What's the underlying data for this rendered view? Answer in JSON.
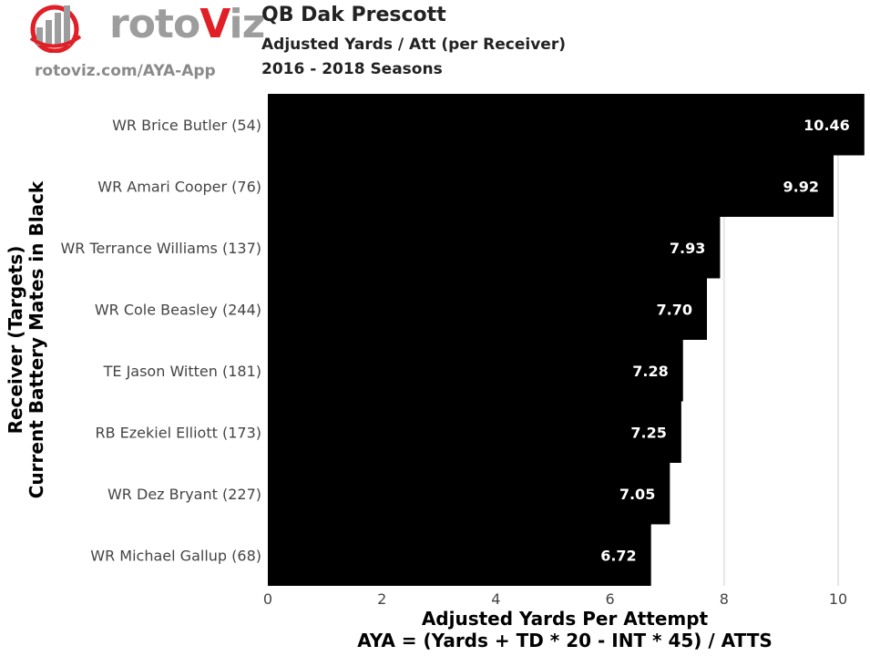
{
  "header": {
    "logo_text_a": "roto",
    "logo_text_v": "V",
    "logo_text_b": "iz",
    "logo_url": "rotoviz.com/AYA-App",
    "title": "QB Dak Prescott",
    "subtitle_1": "Adjusted Yards / Att (per Receiver)",
    "subtitle_2": "2016 - 2018 Seasons"
  },
  "chart_data": {
    "type": "bar",
    "orientation": "horizontal",
    "categories": [
      "WR Brice Butler (54)",
      "WR Amari Cooper (76)",
      "WR Terrance Williams (137)",
      "WR Cole Beasley (244)",
      "TE Jason Witten (181)",
      "RB Ezekiel Elliott (173)",
      "WR Dez Bryant (227)",
      "WR Michael Gallup (68)"
    ],
    "values": [
      10.46,
      9.92,
      7.93,
      7.7,
      7.28,
      7.25,
      7.05,
      6.72
    ],
    "value_labels": [
      "10.46",
      "9.92",
      "7.93",
      "7.70",
      "7.28",
      "7.25",
      "7.05",
      "6.72"
    ],
    "xlabel": "Adjusted Yards Per Attempt",
    "xlabel_2": "AYA = (Yards + TD * 20 - INT * 45) / ATTS",
    "ylabel": "Receiver (Targets)",
    "ylabel_2": "Current Battery Mates in Black",
    "xticks": [
      0,
      2,
      4,
      6,
      8,
      10
    ],
    "xlim": [
      0,
      10.46
    ],
    "grid": true,
    "bar_color": "#000000",
    "label_color": "#ffffff",
    "grid_color": "#e6e6e6"
  }
}
